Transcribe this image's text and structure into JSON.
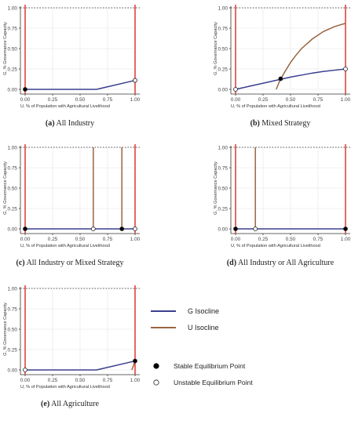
{
  "colors": {
    "g_isocline": "#3b3f8f",
    "u_isocline": "#9a6440",
    "vertical": "#e0443e",
    "grid": "#ebebeb",
    "dotted": "#555555",
    "axis": "#333333"
  },
  "legend": {
    "g_isocline": "G Isocline",
    "u_isocline": "U Isocline",
    "stable": "Stable Equilibrium Point",
    "unstable": "Unstable Equilibrium Point"
  },
  "chart_data": [
    {
      "id": "a",
      "type": "line",
      "caption_letter": "(a)",
      "caption_text": "All Industry",
      "xlabel": "U, % of Population with Agricultural Livelihood",
      "ylabel": "G, % Governance Capacity",
      "xlim": [
        0,
        1
      ],
      "ylim": [
        0,
        1
      ],
      "xticks": [
        "0.00",
        "0.25",
        "0.50",
        "0.75",
        "1.00"
      ],
      "yticks": [
        "0.00",
        "0.25",
        "0.50",
        "0.75",
        "1.00"
      ],
      "reference_lines_y": [
        1.0
      ],
      "vertical_lines_x": [
        0.0,
        1.0
      ],
      "series": [
        {
          "kind": "g",
          "points": [
            [
              0,
              0
            ],
            [
              0.65,
              0
            ],
            [
              1.0,
              0.11
            ]
          ]
        }
      ],
      "equilibria": [
        {
          "x": 0.0,
          "y": 0.0,
          "stable": true
        },
        {
          "x": 1.0,
          "y": 0.11,
          "stable": false
        }
      ]
    },
    {
      "id": "b",
      "type": "line",
      "caption_letter": "(b)",
      "caption_text": "Mixed Strategy",
      "xlabel": "U, % of Population with Agricultural Livelihood",
      "ylabel": "G, % Governance Capacity",
      "xlim": [
        0,
        1
      ],
      "ylim": [
        0,
        1
      ],
      "xticks": [
        "0.00",
        "0.25",
        "0.50",
        "0.75",
        "1.00"
      ],
      "yticks": [
        "0.00",
        "0.25",
        "0.50",
        "0.75",
        "1.00"
      ],
      "reference_lines_y": [
        1.0
      ],
      "vertical_lines_x": [
        0.0,
        1.0
      ],
      "series": [
        {
          "kind": "g",
          "points": [
            [
              0,
              0
            ],
            [
              0.1,
              0.03
            ],
            [
              0.2,
              0.06
            ],
            [
              0.3,
              0.09
            ],
            [
              0.4,
              0.12
            ],
            [
              0.5,
              0.15
            ],
            [
              0.6,
              0.175
            ],
            [
              0.7,
              0.2
            ],
            [
              0.8,
              0.22
            ],
            [
              0.9,
              0.235
            ],
            [
              1.0,
              0.25
            ]
          ]
        },
        {
          "kind": "u",
          "points": [
            [
              0.37,
              0
            ],
            [
              0.4,
              0.1
            ],
            [
              0.45,
              0.22
            ],
            [
              0.5,
              0.33
            ],
            [
              0.55,
              0.42
            ],
            [
              0.6,
              0.5
            ],
            [
              0.7,
              0.62
            ],
            [
              0.8,
              0.71
            ],
            [
              0.9,
              0.77
            ],
            [
              1.0,
              0.81
            ]
          ]
        }
      ],
      "equilibria": [
        {
          "x": 0.0,
          "y": 0.0,
          "stable": false
        },
        {
          "x": 0.41,
          "y": 0.13,
          "stable": true
        },
        {
          "x": 1.0,
          "y": 0.25,
          "stable": false
        }
      ]
    },
    {
      "id": "c",
      "type": "line",
      "caption_letter": "(c)",
      "caption_text": "All Industry or Mixed Strategy",
      "xlabel": "U, % of Population with Agricultural Livelihood",
      "ylabel": "G, % Governance Capacity",
      "xlim": [
        0,
        1
      ],
      "ylim": [
        0,
        1
      ],
      "xticks": [
        "0.00",
        "0.25",
        "0.50",
        "0.75",
        "1.00"
      ],
      "yticks": [
        "0.00",
        "0.25",
        "0.50",
        "0.75",
        "1.00"
      ],
      "reference_lines_y": [
        1.0
      ],
      "vertical_lines_x": [
        0.0,
        1.0
      ],
      "series": [
        {
          "kind": "g",
          "points": [
            [
              0,
              0
            ],
            [
              1.0,
              0
            ]
          ]
        },
        {
          "kind": "u",
          "points": [
            [
              0.62,
              0
            ],
            [
              0.62,
              1.0
            ]
          ]
        },
        {
          "kind": "u",
          "points": [
            [
              0.88,
              0
            ],
            [
              0.88,
              1.0
            ]
          ]
        }
      ],
      "equilibria": [
        {
          "x": 0.0,
          "y": 0.0,
          "stable": true
        },
        {
          "x": 0.62,
          "y": 0.0,
          "stable": false
        },
        {
          "x": 0.88,
          "y": 0.0,
          "stable": true
        },
        {
          "x": 1.0,
          "y": 0.0,
          "stable": false
        }
      ]
    },
    {
      "id": "d",
      "type": "line",
      "caption_letter": "(d)",
      "caption_text": "All Industry or All Agriculture",
      "xlabel": "U, % of Population with Agricultural Livelihood",
      "ylabel": "G, % Governance Capacity",
      "xlim": [
        0,
        1
      ],
      "ylim": [
        0,
        1
      ],
      "xticks": [
        "0.00",
        "0.25",
        "0.50",
        "0.75",
        "1.00"
      ],
      "yticks": [
        "0.00",
        "0.25",
        "0.50",
        "0.75",
        "1.00"
      ],
      "reference_lines_y": [
        1.0
      ],
      "vertical_lines_x": [
        0.0,
        1.0
      ],
      "series": [
        {
          "kind": "g",
          "points": [
            [
              0,
              0
            ],
            [
              1.0,
              0
            ]
          ]
        },
        {
          "kind": "u",
          "points": [
            [
              0.18,
              0
            ],
            [
              0.18,
              1.0
            ]
          ]
        }
      ],
      "equilibria": [
        {
          "x": 0.0,
          "y": 0.0,
          "stable": true
        },
        {
          "x": 0.18,
          "y": 0.0,
          "stable": false
        },
        {
          "x": 1.0,
          "y": 0.0,
          "stable": true
        }
      ]
    },
    {
      "id": "e",
      "type": "line",
      "caption_letter": "(e)",
      "caption_text": "All Agriculture",
      "xlabel": "U, % of Population with Agricultural Livelihood",
      "ylabel": "G, % Governance Capacity",
      "xlim": [
        0,
        1
      ],
      "ylim": [
        0,
        1
      ],
      "xticks": [
        "0.00",
        "0.25",
        "0.50",
        "0.75",
        "1.00"
      ],
      "yticks": [
        "0.00",
        "0.25",
        "0.50",
        "0.75",
        "1.00"
      ],
      "reference_lines_y": [
        1.0
      ],
      "vertical_lines_x": [
        0.0,
        1.0
      ],
      "series": [
        {
          "kind": "g",
          "points": [
            [
              0,
              0
            ],
            [
              0.65,
              0
            ],
            [
              1.0,
              0.11
            ]
          ]
        },
        {
          "kind": "u",
          "points": [
            [
              0.97,
              0
            ],
            [
              0.985,
              0.05
            ],
            [
              1.0,
              0.11
            ]
          ]
        }
      ],
      "equilibria": [
        {
          "x": 0.0,
          "y": 0.0,
          "stable": false
        },
        {
          "x": 1.0,
          "y": 0.11,
          "stable": true
        }
      ]
    }
  ]
}
